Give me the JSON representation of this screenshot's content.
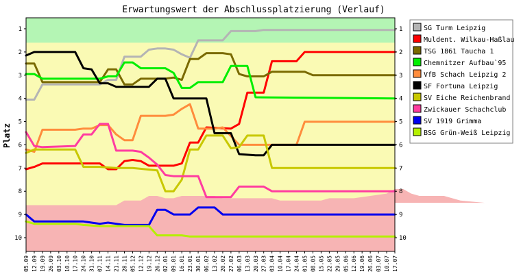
{
  "chart_data": {
    "type": "line",
    "title": "Erwartungswert der Abschlussplatzierung (Verlauf)",
    "ylabel": "Platz",
    "xlabel": "",
    "ylim": [
      1,
      10
    ],
    "y_inverted": true,
    "y_ticks": [
      1,
      2,
      3,
      4,
      5,
      6,
      7,
      8,
      9,
      10
    ],
    "grid": false,
    "legend_position": "right",
    "zones": [
      {
        "name": "top",
        "color": "#b4f5b4",
        "band": [
          [
            0,
            1.6
          ],
          [
            75,
            1.6
          ]
        ]
      },
      {
        "name": "middle",
        "color": "#fafab4",
        "band": [
          [
            0,
            1.6
          ],
          [
            75,
            1.6
          ]
        ]
      },
      {
        "name": "bottom",
        "color": "#f7b4b4",
        "upper": [
          [
            0,
            8.6
          ],
          [
            11,
            8.6
          ],
          [
            12,
            8.4
          ],
          [
            14,
            8.4
          ],
          [
            15,
            8.2
          ],
          [
            16,
            8.2
          ],
          [
            17,
            8.3
          ],
          [
            18,
            8.3
          ],
          [
            19,
            8.2
          ],
          [
            23,
            8.2
          ],
          [
            24,
            8.3
          ],
          [
            30,
            8.3
          ],
          [
            31,
            8.4
          ],
          [
            36,
            8.4
          ],
          [
            37,
            8.3
          ],
          [
            40,
            8.3
          ],
          [
            42,
            8.2
          ],
          [
            44,
            8.1
          ],
          [
            45,
            7.9
          ],
          [
            46,
            7.9
          ],
          [
            47,
            8.1
          ],
          [
            48,
            8.2
          ],
          [
            51,
            8.2
          ],
          [
            52,
            8.3
          ],
          [
            53,
            8.4
          ],
          [
            56,
            8.5
          ],
          [
            75,
            8.5
          ]
        ]
      }
    ],
    "x": [
      "05.09",
      "12.09",
      "19.09",
      "26.09",
      "03.10",
      "10.10",
      "17.10",
      "24.10",
      "31.10",
      "07.11",
      "14.11",
      "21.11",
      "28.11",
      "05.12",
      "12.12",
      "19.12",
      "26.12",
      "02.01",
      "09.01",
      "16.01",
      "23.01",
      "30.01",
      "06.02",
      "13.02",
      "20.02",
      "27.02",
      "06.03",
      "13.03",
      "20.03",
      "27.03",
      "03.04",
      "10.04",
      "17.04",
      "24.04",
      "01.05",
      "08.05",
      "15.05",
      "22.05",
      "29.05",
      "05.06",
      "12.06",
      "19.06",
      "26.06",
      "03.07",
      "10.07",
      "17.07"
    ],
    "x_positions": [
      0,
      2,
      4,
      6,
      8,
      10,
      12,
      14,
      16,
      18,
      20,
      22,
      24,
      26,
      28,
      30,
      32,
      34,
      36,
      38,
      40,
      42,
      44,
      46,
      48,
      50,
      52,
      54,
      56,
      58,
      60,
      62,
      64,
      66,
      68,
      70,
      72,
      74,
      76,
      78,
      80,
      82,
      84,
      86,
      88,
      90
    ],
    "series": [
      {
        "name": "SG Turm Leipzig",
        "color": "#b4b4b4",
        "points": [
          [
            0,
            4.05
          ],
          [
            1,
            4.05
          ],
          [
            2,
            3.4
          ],
          [
            9,
            3.4
          ],
          [
            10,
            3.2
          ],
          [
            11,
            3.2
          ],
          [
            12,
            2.2
          ],
          [
            14,
            2.2
          ],
          [
            15,
            1.9
          ],
          [
            16,
            1.85
          ],
          [
            17,
            1.85
          ],
          [
            18,
            1.9
          ],
          [
            19,
            2.1
          ],
          [
            20,
            2.25
          ],
          [
            21,
            1.5
          ],
          [
            24,
            1.5
          ],
          [
            25,
            1.1
          ],
          [
            28,
            1.1
          ],
          [
            29,
            1.05
          ],
          [
            45,
            1.05
          ]
        ]
      },
      {
        "name": "Muldent. Wilkau-Haßlau",
        "color": "#ff0000",
        "points": [
          [
            0,
            7.05
          ],
          [
            1,
            6.95
          ],
          [
            2,
            6.8
          ],
          [
            9,
            6.8
          ],
          [
            10,
            7.05
          ],
          [
            11,
            7.05
          ],
          [
            12,
            6.7
          ],
          [
            13,
            6.65
          ],
          [
            14,
            6.7
          ],
          [
            15,
            6.9
          ],
          [
            18,
            6.9
          ],
          [
            19,
            6.8
          ],
          [
            20,
            5.9
          ],
          [
            21,
            5.9
          ],
          [
            22,
            5.25
          ],
          [
            25,
            5.3
          ],
          [
            26,
            5.1
          ],
          [
            27,
            3.75
          ],
          [
            29,
            3.75
          ],
          [
            30,
            2.4
          ],
          [
            33,
            2.4
          ],
          [
            34,
            2.0
          ],
          [
            45,
            2.0
          ]
        ]
      },
      {
        "name": "TSG 1861 Taucha 1",
        "color": "#7a6a00",
        "points": [
          [
            0,
            2.5
          ],
          [
            1,
            2.5
          ],
          [
            2,
            3.3
          ],
          [
            9,
            3.3
          ],
          [
            10,
            2.75
          ],
          [
            11,
            2.75
          ],
          [
            12,
            3.4
          ],
          [
            13,
            3.4
          ],
          [
            14,
            3.15
          ],
          [
            17,
            3.15
          ],
          [
            18,
            3.1
          ],
          [
            19,
            3.2
          ],
          [
            20,
            2.3
          ],
          [
            21,
            2.3
          ],
          [
            22,
            2.05
          ],
          [
            24,
            2.05
          ],
          [
            25,
            2.1
          ],
          [
            26,
            2.95
          ],
          [
            27,
            3.05
          ],
          [
            29,
            3.05
          ],
          [
            30,
            2.85
          ],
          [
            34,
            2.85
          ],
          [
            35,
            3.0
          ],
          [
            45,
            3.0
          ]
        ]
      },
      {
        "name": "Chemnitzer Aufbau`95",
        "color": "#00ee00",
        "points": [
          [
            0,
            2.95
          ],
          [
            1,
            2.95
          ],
          [
            2,
            3.15
          ],
          [
            9,
            3.15
          ],
          [
            10,
            3.05
          ],
          [
            11,
            3.05
          ],
          [
            12,
            2.45
          ],
          [
            13,
            2.45
          ],
          [
            14,
            2.7
          ],
          [
            17,
            2.7
          ],
          [
            18,
            2.9
          ],
          [
            19,
            3.55
          ],
          [
            20,
            3.55
          ],
          [
            21,
            3.3
          ],
          [
            24,
            3.3
          ],
          [
            25,
            2.6
          ],
          [
            27,
            2.6
          ],
          [
            28,
            3.95
          ],
          [
            45,
            4.0
          ]
        ]
      },
      {
        "name": "VfB Schach Leipzig 2",
        "color": "#ff8c3c",
        "points": [
          [
            0,
            6.2
          ],
          [
            1,
            6.3
          ],
          [
            2,
            5.35
          ],
          [
            6,
            5.35
          ],
          [
            7,
            5.3
          ],
          [
            8,
            5.3
          ],
          [
            9,
            5.15
          ],
          [
            10,
            5.15
          ],
          [
            11,
            5.55
          ],
          [
            12,
            5.8
          ],
          [
            13,
            5.8
          ],
          [
            14,
            4.75
          ],
          [
            17,
            4.75
          ],
          [
            18,
            4.7
          ],
          [
            19,
            4.45
          ],
          [
            20,
            4.25
          ],
          [
            21,
            5.3
          ],
          [
            23,
            5.3
          ],
          [
            24,
            5.25
          ],
          [
            26,
            6.0
          ],
          [
            28,
            6.0
          ],
          [
            29,
            6.0
          ],
          [
            33,
            6.0
          ],
          [
            34,
            5.0
          ],
          [
            45,
            5.0
          ]
        ]
      },
      {
        "name": "SF Fortuna Leipzig",
        "color": "#000000",
        "points": [
          [
            0,
            2.15
          ],
          [
            1,
            2.0
          ],
          [
            6,
            2.0
          ],
          [
            7,
            2.7
          ],
          [
            8,
            2.75
          ],
          [
            9,
            3.35
          ],
          [
            10,
            3.35
          ],
          [
            11,
            3.5
          ],
          [
            13,
            3.5
          ],
          [
            14,
            3.5
          ],
          [
            15,
            3.5
          ],
          [
            16,
            3.15
          ],
          [
            17,
            3.15
          ],
          [
            18,
            4.0
          ],
          [
            20,
            4.0
          ],
          [
            21,
            4.0
          ],
          [
            22,
            4.0
          ],
          [
            23,
            5.5
          ],
          [
            25,
            5.5
          ],
          [
            26,
            6.4
          ],
          [
            28,
            6.45
          ],
          [
            29,
            6.45
          ],
          [
            30,
            6.0
          ],
          [
            45,
            6.0
          ]
        ]
      },
      {
        "name": "SV Eiche Reichenbrand",
        "color": "#c8c800",
        "points": [
          [
            0,
            6.35
          ],
          [
            1,
            6.2
          ],
          [
            3,
            6.2
          ],
          [
            6,
            6.2
          ],
          [
            7,
            6.95
          ],
          [
            8,
            6.95
          ],
          [
            9,
            6.95
          ],
          [
            11,
            7.0
          ],
          [
            13,
            7.0
          ],
          [
            16,
            7.1
          ],
          [
            17,
            8.0
          ],
          [
            18,
            8.0
          ],
          [
            19,
            7.5
          ],
          [
            20,
            6.2
          ],
          [
            21,
            6.2
          ],
          [
            22,
            5.6
          ],
          [
            24,
            5.6
          ],
          [
            25,
            6.15
          ],
          [
            26,
            6.1
          ],
          [
            27,
            5.6
          ],
          [
            29,
            5.6
          ],
          [
            30,
            7.0
          ],
          [
            45,
            7.0
          ]
        ]
      },
      {
        "name": "Zwickauer Schachclub",
        "color": "#ff3ca0",
        "points": [
          [
            0,
            5.45
          ],
          [
            1,
            6.05
          ],
          [
            2,
            6.1
          ],
          [
            6,
            6.05
          ],
          [
            7,
            5.55
          ],
          [
            8,
            5.55
          ],
          [
            9,
            5.1
          ],
          [
            10,
            5.1
          ],
          [
            11,
            6.25
          ],
          [
            13,
            6.25
          ],
          [
            14,
            6.3
          ],
          [
            15,
            6.55
          ],
          [
            16,
            6.85
          ],
          [
            17,
            7.3
          ],
          [
            18,
            7.35
          ],
          [
            21,
            7.35
          ],
          [
            22,
            8.25
          ],
          [
            25,
            8.25
          ],
          [
            26,
            7.8
          ],
          [
            29,
            7.8
          ],
          [
            30,
            8.0
          ],
          [
            45,
            8.0
          ]
        ]
      },
      {
        "name": "SV 1919 Grimma",
        "color": "#0000ee",
        "points": [
          [
            0,
            9.0
          ],
          [
            1,
            9.3
          ],
          [
            6,
            9.3
          ],
          [
            7,
            9.3
          ],
          [
            8,
            9.35
          ],
          [
            9,
            9.4
          ],
          [
            10,
            9.35
          ],
          [
            11,
            9.4
          ],
          [
            12,
            9.45
          ],
          [
            15,
            9.45
          ],
          [
            16,
            8.8
          ],
          [
            17,
            8.8
          ],
          [
            18,
            9.0
          ],
          [
            20,
            9.0
          ],
          [
            21,
            8.7
          ],
          [
            23,
            8.7
          ],
          [
            24,
            9.0
          ],
          [
            45,
            9.0
          ]
        ]
      },
      {
        "name": "BSG Grün-Weiß Leipzig",
        "color": "#b4f000",
        "points": [
          [
            0,
            9.3
          ],
          [
            1,
            9.4
          ],
          [
            3,
            9.4
          ],
          [
            6,
            9.4
          ],
          [
            7,
            9.45
          ],
          [
            9,
            9.5
          ],
          [
            11,
            9.5
          ],
          [
            15,
            9.5
          ],
          [
            16,
            9.9
          ],
          [
            17,
            9.9
          ],
          [
            19,
            9.9
          ],
          [
            20,
            9.95
          ],
          [
            45,
            9.95
          ]
        ]
      }
    ]
  }
}
